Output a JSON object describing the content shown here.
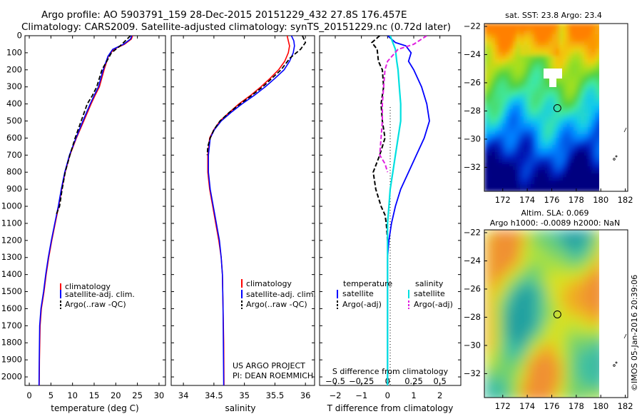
{
  "header": {
    "title_line1": "Argo profile: AO 5903791_159 28-Dec-2015 20151229_432 27.8S 176.457E",
    "title_line2": "Climatology: CARS2009. Satellite-adjusted climatology: synTS_20151229.nc (0.72d later)"
  },
  "colors": {
    "climatology": "#ff0000",
    "satellite": "#0000ff",
    "argo": "#000000",
    "satellite_salinity": "#00e0e0",
    "argo_salinity": "#e020e0"
  },
  "credits": {
    "project": "US ARGO PROJECT",
    "pi": "PI: DEAN ROEMMICH",
    "imos": "©IMOS 05-Jan-2016 20:39:06"
  },
  "depth_ticks": [
    0,
    100,
    200,
    300,
    400,
    500,
    600,
    700,
    800,
    900,
    1000,
    1100,
    1200,
    1300,
    1400,
    1500,
    1600,
    1700,
    1800,
    1900,
    2000
  ],
  "legend_temp": {
    "climatology": "climatology",
    "satellite": "satellite-adj. clim.",
    "argo": "Argo(..raw -QC)"
  },
  "legend_diff": {
    "temperature_heading": "temperature",
    "salinity_heading": "salinity",
    "satellite": "satellite",
    "argo": "Argo(-adj)"
  },
  "chart_data": [
    {
      "type": "line",
      "xlabel": "temperature (deg C)",
      "ylabel": "",
      "xlim": [
        -1,
        31.5
      ],
      "ylim": [
        2050,
        0
      ],
      "xticks": [
        0,
        5,
        10,
        15,
        20,
        25,
        30
      ],
      "series": [
        {
          "name": "climatology",
          "x": [
            23.9,
            23.6,
            22.0,
            19.5,
            18.3,
            17.3,
            16.2,
            15.2,
            14.3,
            12.6,
            10.9,
            9.4,
            8.3,
            7.5,
            6.8,
            6.0,
            5.2,
            4.5,
            3.9,
            3.4,
            2.8,
            2.5,
            2.35,
            2.3
          ],
          "y": [
            0,
            20,
            50,
            80,
            120,
            200,
            300,
            350,
            400,
            500,
            600,
            700,
            800,
            900,
            1000,
            1100,
            1200,
            1300,
            1400,
            1500,
            1600,
            1700,
            1900,
            2050
          ]
        },
        {
          "name": "satellite-adj. clim.",
          "x": [
            23.7,
            23.4,
            21.8,
            19.3,
            18.2,
            17.1,
            16.0,
            15.0,
            14.1,
            12.4,
            10.8,
            9.3,
            8.2,
            7.4,
            6.7,
            5.9,
            5.1,
            4.4,
            3.8,
            3.3,
            2.7,
            2.4,
            2.3,
            2.25
          ],
          "y": [
            0,
            20,
            50,
            80,
            120,
            200,
            300,
            350,
            400,
            500,
            600,
            700,
            800,
            900,
            1000,
            1100,
            1200,
            1300,
            1400,
            1500,
            1600,
            1700,
            1900,
            2050
          ]
        },
        {
          "name": "Argo(..raw -QC)",
          "x": [
            23.4,
            22.6,
            21.0,
            19.0,
            17.9,
            16.8,
            15.6,
            14.6,
            13.4,
            12.0,
            10.6,
            9.4,
            8.3,
            7.6,
            7.0,
            6.2
          ],
          "y": [
            0,
            20,
            60,
            100,
            150,
            200,
            300,
            350,
            400,
            500,
            600,
            700,
            800,
            900,
            1000,
            1050
          ]
        }
      ]
    },
    {
      "type": "line",
      "xlabel": "salinity",
      "ylabel": "",
      "xlim": [
        33.8,
        36.15
      ],
      "ylim": [
        2050,
        0
      ],
      "xticks": [
        34,
        34.5,
        35,
        35.5,
        36
      ],
      "series": [
        {
          "name": "climatology",
          "x": [
            35.7,
            35.72,
            35.74,
            35.72,
            35.66,
            35.56,
            35.42,
            35.27,
            35.1,
            34.91,
            34.75,
            34.6,
            34.5,
            34.43,
            34.4,
            34.4,
            34.43,
            34.48,
            34.53,
            34.58,
            34.62,
            34.64,
            34.65,
            34.66,
            34.665
          ],
          "y": [
            0,
            30,
            60,
            100,
            150,
            200,
            250,
            300,
            350,
            400,
            450,
            500,
            550,
            600,
            700,
            800,
            900,
            1000,
            1100,
            1200,
            1300,
            1400,
            1600,
            1800,
            2050
          ]
        },
        {
          "name": "satellite-adj. clim.",
          "x": [
            35.77,
            35.81,
            35.82,
            35.8,
            35.74,
            35.65,
            35.5,
            35.34,
            35.16,
            34.96,
            34.78,
            34.62,
            34.51,
            34.44,
            34.41,
            34.41,
            34.44,
            34.49,
            34.54,
            34.59,
            34.62,
            34.64,
            34.65,
            34.655,
            34.66
          ],
          "y": [
            0,
            30,
            60,
            100,
            150,
            200,
            250,
            300,
            350,
            400,
            450,
            500,
            550,
            600,
            700,
            800,
            900,
            1000,
            1100,
            1200,
            1300,
            1400,
            1600,
            1800,
            2050
          ]
        },
        {
          "name": "Argo(..raw -QC)",
          "x": [
            35.95,
            36.0,
            35.92,
            35.75,
            35.6,
            35.45,
            35.3,
            35.12,
            34.93,
            34.75,
            34.6,
            34.5,
            34.44,
            34.4,
            34.39
          ],
          "y": [
            0,
            40,
            80,
            130,
            200,
            250,
            300,
            350,
            400,
            450,
            500,
            550,
            600,
            650,
            700
          ]
        }
      ]
    },
    {
      "type": "line",
      "xlabel": "T difference from climatology",
      "xlabel_top": "S difference from climatology",
      "ylabel": "",
      "xlim": [
        -2.6,
        2.8
      ],
      "ylim": [
        2050,
        0
      ],
      "xticks": [
        -2,
        -1,
        0,
        1,
        2
      ],
      "xticks_top": [
        -0.5,
        -0.25,
        0,
        0.25,
        0.5
      ],
      "xticks_top_labels": [
        "−0.5",
        "−0.25",
        "0",
        "0.25",
        "0.5"
      ],
      "series": [
        {
          "name": "temperature satellite",
          "x": [
            0.0,
            0.3,
            0.7,
            0.9,
            0.8,
            1.0,
            1.3,
            1.5,
            1.6,
            1.4,
            1.1,
            0.8,
            0.5,
            0.3,
            0.15,
            0.05,
            0.0,
            0.0,
            0.0,
            0.0
          ],
          "y": [
            0,
            40,
            60,
            100,
            150,
            200,
            300,
            400,
            500,
            600,
            700,
            800,
            900,
            1000,
            1100,
            1200,
            1300,
            1500,
            1800,
            2050
          ]
        },
        {
          "name": "temperature Argo(-adj)",
          "x": [
            -0.3,
            -0.6,
            -0.4,
            -0.35,
            -0.2,
            -0.15,
            -0.25,
            -0.2,
            -0.1,
            -0.3,
            -0.55,
            -0.45,
            -0.25,
            -0.1,
            -0.05,
            0.0
          ],
          "y": [
            0,
            40,
            80,
            150,
            200,
            300,
            400,
            500,
            600,
            700,
            800,
            900,
            1000,
            1050,
            1100,
            1200
          ]
        },
        {
          "name": "salinity satellite",
          "x": [
            0.1,
            0.2,
            0.3,
            0.35,
            0.4,
            0.45,
            0.5,
            0.5,
            0.4,
            0.3,
            0.2,
            0.1,
            0.05,
            0.0,
            0.0
          ],
          "y": [
            0,
            40,
            80,
            150,
            200,
            300,
            400,
            500,
            600,
            700,
            800,
            900,
            1000,
            1100,
            2050
          ]
        },
        {
          "name": "salinity Argo(-adj)",
          "x": [
            1.5,
            1.0,
            0.4,
            0.0,
            -0.1,
            -0.15,
            -0.2,
            -0.2,
            -0.25,
            -0.3,
            -0.1,
            0.0
          ],
          "y": [
            0,
            50,
            80,
            150,
            200,
            300,
            400,
            500,
            600,
            700,
            750,
            800
          ]
        }
      ]
    },
    {
      "type": "heatmap",
      "title": "sat. SST: 23.8 Argo: 23.4",
      "xlim": [
        170.5,
        182.2
      ],
      "ylim": [
        -33.7,
        -21.8
      ],
      "xticks": [
        172,
        174,
        176,
        178,
        180,
        182
      ],
      "yticks": [
        -22,
        -24,
        -26,
        -28,
        -30,
        -32
      ],
      "marker": {
        "lon": 176.457,
        "lat": -27.8
      }
    },
    {
      "type": "heatmap",
      "title": "Altim. SLA: 0.069",
      "subtitle": "Argo h1000: -0.0089 h2000: NaN",
      "xlim": [
        170.5,
        182.2
      ],
      "ylim": [
        -33.7,
        -21.8
      ],
      "xticks": [
        172,
        174,
        176,
        178,
        180,
        182
      ],
      "yticks": [
        -22,
        -24,
        -26,
        -28,
        -30,
        -32
      ],
      "marker": {
        "lon": 176.457,
        "lat": -27.8
      }
    }
  ]
}
